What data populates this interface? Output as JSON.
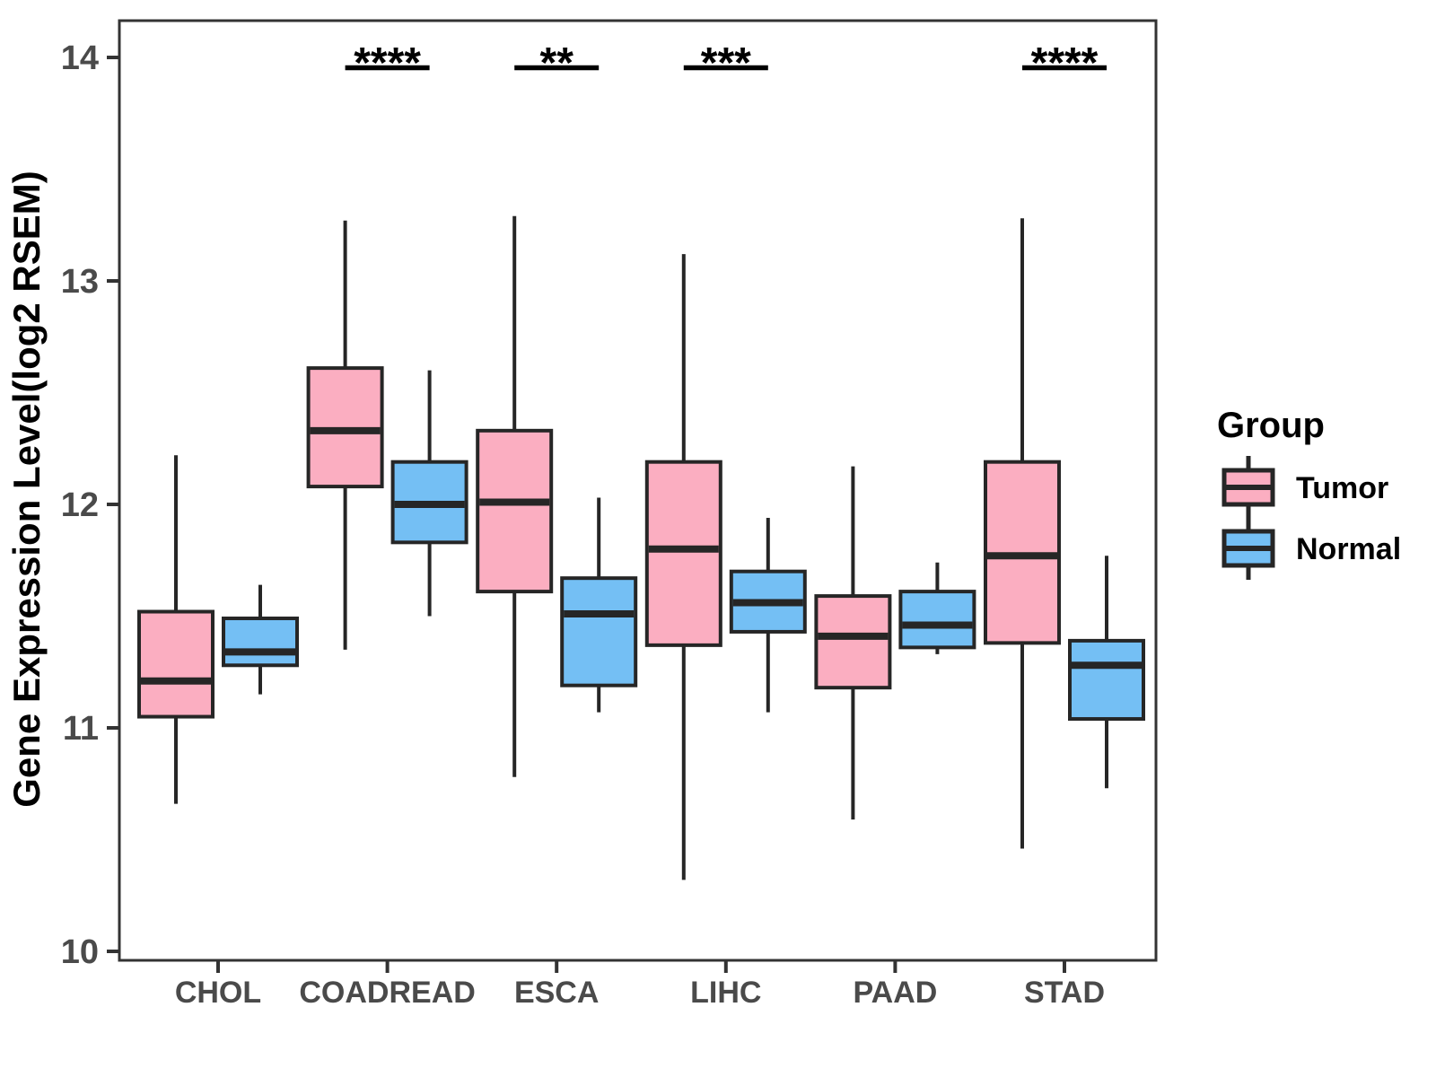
{
  "chart_data": {
    "type": "boxplot",
    "title": "",
    "xlabel": "",
    "ylabel": "Gene Expression Level(log2 RSEM)",
    "ylim": [
      10,
      14
    ],
    "yticks": [
      10,
      11,
      12,
      13,
      14
    ],
    "grid": false,
    "categories": [
      "CHOL",
      "COADREAD",
      "ESCA",
      "LIHC",
      "PAAD",
      "STAD"
    ],
    "legend": {
      "title": "Group",
      "position": "right"
    },
    "series": [
      {
        "name": "Tumor",
        "color": "#FBAEC1",
        "boxes": [
          {
            "low": 10.66,
            "q1": 11.05,
            "median": 11.21,
            "q3": 11.52,
            "high": 12.22
          },
          {
            "low": 11.35,
            "q1": 12.08,
            "median": 12.33,
            "q3": 12.61,
            "high": 13.27
          },
          {
            "low": 10.78,
            "q1": 11.61,
            "median": 12.01,
            "q3": 12.33,
            "high": 13.29
          },
          {
            "low": 10.32,
            "q1": 11.37,
            "median": 11.8,
            "q3": 12.19,
            "high": 13.12
          },
          {
            "low": 10.59,
            "q1": 11.18,
            "median": 11.41,
            "q3": 11.59,
            "high": 12.17
          },
          {
            "low": 10.46,
            "q1": 11.38,
            "median": 11.77,
            "q3": 12.19,
            "high": 13.28
          }
        ]
      },
      {
        "name": "Normal",
        "color": "#74BFF4",
        "boxes": [
          {
            "low": 11.15,
            "q1": 11.28,
            "median": 11.34,
            "q3": 11.49,
            "high": 11.64
          },
          {
            "low": 11.5,
            "q1": 11.83,
            "median": 12.0,
            "q3": 12.19,
            "high": 12.6
          },
          {
            "low": 11.07,
            "q1": 11.19,
            "median": 11.51,
            "q3": 11.67,
            "high": 12.03
          },
          {
            "low": 11.07,
            "q1": 11.43,
            "median": 11.56,
            "q3": 11.7,
            "high": 11.94
          },
          {
            "low": 11.33,
            "q1": 11.36,
            "median": 11.46,
            "q3": 11.61,
            "high": 11.74
          },
          {
            "low": 10.73,
            "q1": 11.04,
            "median": 11.28,
            "q3": 11.39,
            "high": 11.77
          }
        ]
      }
    ],
    "significance": [
      {
        "category": "COADREAD",
        "label": "****"
      },
      {
        "category": "ESCA",
        "label": "**"
      },
      {
        "category": "LIHC",
        "label": "***"
      },
      {
        "category": "STAD",
        "label": "****"
      }
    ],
    "style": {
      "box_stroke": "#262626",
      "axis_color": "#333333",
      "tick_label_color": "#4a4a4a",
      "text_color": "#000000"
    }
  }
}
